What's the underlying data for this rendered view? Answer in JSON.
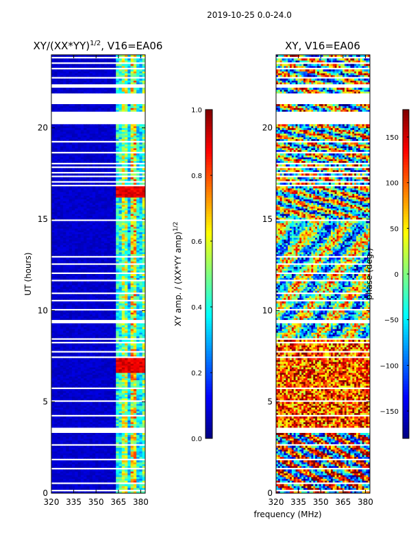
{
  "figure": {
    "suptitle": "2019-10-25 0.0-24.0",
    "xlabel": "frequency (MHz)"
  },
  "colormap": "jet",
  "chart_data": [
    {
      "type": "heatmap",
      "title_prefix": "XY/(XX*YY)",
      "title_exp": "1/2",
      "title_suffix": ", V16=EA06",
      "xlabel": "",
      "ylabel": "UT (hours)",
      "xlim": [
        320,
        383
      ],
      "ylim": [
        0,
        24
      ],
      "xticks": [
        320,
        335,
        350,
        365,
        380
      ],
      "yticks": [
        0,
        5,
        10,
        15,
        20
      ],
      "colorbar": {
        "label_prefix": "XY amp. / (XX*YY amp)",
        "label_exp": "1/2",
        "min": 0.0,
        "max": 1.0,
        "ticks": [
          0.0,
          0.2,
          0.4,
          0.6,
          0.8,
          1.0
        ],
        "tick_labels": [
          "0.0",
          "0.2",
          "0.4",
          "0.6",
          "0.8",
          "1.0"
        ]
      },
      "features": {
        "background_value": 0.05,
        "rfi_channel_range_mhz": [
          363,
          383
        ],
        "rfi_channel_values": [
          0.45,
          0.6,
          0.35,
          0.7,
          0.4,
          0.55
        ],
        "high_value_bands_hours": [
          [
            6.6,
            7.4
          ],
          [
            16.2,
            16.8
          ]
        ],
        "high_value": 0.95
      }
    },
    {
      "type": "heatmap",
      "title_prefix": "XY, V16=EA06",
      "title_exp": "",
      "title_suffix": "",
      "xlabel": "",
      "ylabel": "",
      "xlim": [
        320,
        383
      ],
      "ylim": [
        0,
        24
      ],
      "xticks": [
        320,
        335,
        350,
        365,
        380
      ],
      "yticks": [
        0,
        5,
        10,
        15,
        20
      ],
      "colorbar": {
        "label_prefix": "phase (deg.)",
        "label_exp": "",
        "min": -180,
        "max": 180,
        "ticks": [
          -150,
          -100,
          -50,
          0,
          50,
          100,
          150
        ],
        "tick_labels": [
          "−150",
          "−100",
          "−50",
          "0",
          "50",
          "100",
          "150"
        ]
      },
      "features": {
        "phase_regimes": [
          {
            "hours": [
              0,
              3.3
            ],
            "dominant": "mixed, blue/yellow/red"
          },
          {
            "hours": [
              3.3,
              8.5
            ],
            "dominant": "red/orange"
          },
          {
            "hours": [
              8.5,
              15
            ],
            "dominant": "cyan/green/orange mixed"
          },
          {
            "hours": [
              15,
              24
            ],
            "dominant": "mixed"
          }
        ]
      }
    }
  ],
  "flagged_hours": [
    [
      0.15,
      0.22
    ],
    [
      0.55,
      0.62
    ],
    [
      0.9,
      0.95
    ],
    [
      1.35,
      1.42
    ],
    [
      1.85,
      1.9
    ],
    [
      2.6,
      2.66
    ],
    [
      3.35,
      3.6
    ],
    [
      4.2,
      4.26
    ],
    [
      4.6,
      4.65
    ],
    [
      5.05,
      5.12
    ],
    [
      5.75,
      5.8
    ],
    [
      6.5,
      6.55
    ],
    [
      7.45,
      7.52
    ],
    [
      7.75,
      7.8
    ],
    [
      8.0,
      8.05
    ],
    [
      8.2,
      8.26
    ],
    [
      8.45,
      8.5
    ],
    [
      8.7,
      8.75
    ],
    [
      8.9,
      8.95
    ],
    [
      9.1,
      9.15
    ],
    [
      9.35,
      9.5
    ],
    [
      9.7,
      9.75
    ],
    [
      10.05,
      10.1
    ],
    [
      10.5,
      10.56
    ],
    [
      10.95,
      11.0
    ],
    [
      11.3,
      11.35
    ],
    [
      11.6,
      11.7
    ],
    [
      12.05,
      12.1
    ],
    [
      12.5,
      12.56
    ],
    [
      12.9,
      13.0
    ],
    [
      14.95,
      15.05
    ],
    [
      16.8,
      16.88
    ],
    [
      17.05,
      17.1
    ],
    [
      17.3,
      17.36
    ],
    [
      17.55,
      17.6
    ],
    [
      17.8,
      17.86
    ],
    [
      18.05,
      18.1
    ],
    [
      18.3,
      18.35
    ],
    [
      18.6,
      18.66
    ],
    [
      18.9,
      18.95
    ],
    [
      19.2,
      19.26
    ],
    [
      19.5,
      19.55
    ],
    [
      19.8,
      19.85
    ],
    [
      20.1,
      20.15
    ],
    [
      20.2,
      20.95
    ],
    [
      21.3,
      21.9
    ],
    [
      22.2,
      22.4
    ],
    [
      22.75,
      22.85
    ],
    [
      23.2,
      23.3
    ],
    [
      23.55,
      23.62
    ],
    [
      23.85,
      23.92
    ]
  ]
}
